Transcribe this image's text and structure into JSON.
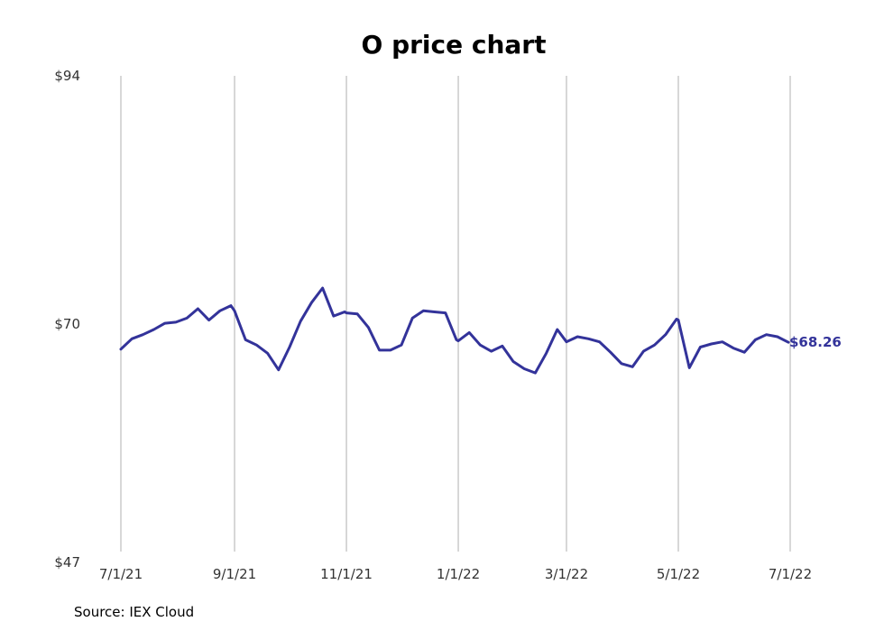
{
  "chart_data": {
    "type": "line",
    "title": "O price chart",
    "source": "Source: IEX Cloud",
    "xlabel": "",
    "ylabel": "",
    "ylim": [
      47,
      94
    ],
    "yticks": [
      "$47",
      "$70",
      "$94"
    ],
    "ytick_values": [
      47,
      70,
      94
    ],
    "xticks": [
      "7/1/21",
      "9/1/21",
      "11/1/21",
      "1/1/22",
      "3/1/22",
      "5/1/22",
      "7/1/22"
    ],
    "xtick_dates": [
      "2021-07-01",
      "2021-09-01",
      "2021-11-01",
      "2022-01-01",
      "2022-03-01",
      "2022-05-01",
      "2022-07-01"
    ],
    "grid": "vertical",
    "line_color": "#33339a",
    "last_label": "$68.26",
    "series": [
      {
        "x": [
          "2021-07-01",
          "2021-07-07",
          "2021-07-13",
          "2021-07-19",
          "2021-07-25",
          "2021-07-31",
          "2021-08-06",
          "2021-08-12",
          "2021-08-18",
          "2021-08-24",
          "2021-08-30",
          "2021-09-01",
          "2021-09-07",
          "2021-09-13",
          "2021-09-19",
          "2021-09-25",
          "2021-10-01",
          "2021-10-07",
          "2021-10-13",
          "2021-10-19",
          "2021-10-25",
          "2021-10-31",
          "2021-11-01",
          "2021-11-07",
          "2021-11-13",
          "2021-11-19",
          "2021-11-25",
          "2021-12-01",
          "2021-12-07",
          "2021-12-13",
          "2021-12-19",
          "2021-12-25",
          "2021-12-31",
          "2022-01-01",
          "2022-01-07",
          "2022-01-13",
          "2022-01-19",
          "2022-01-25",
          "2022-01-31",
          "2022-02-06",
          "2022-02-12",
          "2022-02-18",
          "2022-02-24",
          "2022-03-01",
          "2022-03-07",
          "2022-03-13",
          "2022-03-19",
          "2022-03-25",
          "2022-03-31",
          "2022-04-06",
          "2022-04-12",
          "2022-04-18",
          "2022-04-24",
          "2022-04-30",
          "2022-05-01",
          "2022-05-07",
          "2022-05-13",
          "2022-05-19",
          "2022-05-25",
          "2022-05-31",
          "2022-06-06",
          "2022-06-12",
          "2022-06-18",
          "2022-06-24",
          "2022-06-30"
        ],
        "y": [
          67.6,
          68.6,
          69.0,
          69.5,
          70.1,
          70.2,
          70.6,
          71.5,
          70.4,
          71.3,
          71.8,
          71.3,
          68.5,
          68.0,
          67.2,
          65.6,
          67.8,
          70.3,
          72.1,
          73.5,
          70.8,
          71.2,
          71.1,
          71.0,
          69.7,
          67.5,
          67.5,
          68.0,
          70.6,
          71.3,
          71.2,
          71.1,
          68.5,
          68.4,
          69.2,
          68.0,
          67.4,
          67.9,
          66.4,
          65.7,
          65.3,
          67.2,
          69.5,
          68.3,
          68.8,
          68.6,
          68.3,
          67.3,
          66.2,
          65.9,
          67.4,
          68.0,
          69.0,
          70.5,
          70.4,
          65.8,
          67.8,
          68.1,
          68.3,
          67.7,
          67.3,
          68.5,
          69.0,
          68.8,
          68.26
        ]
      }
    ]
  }
}
